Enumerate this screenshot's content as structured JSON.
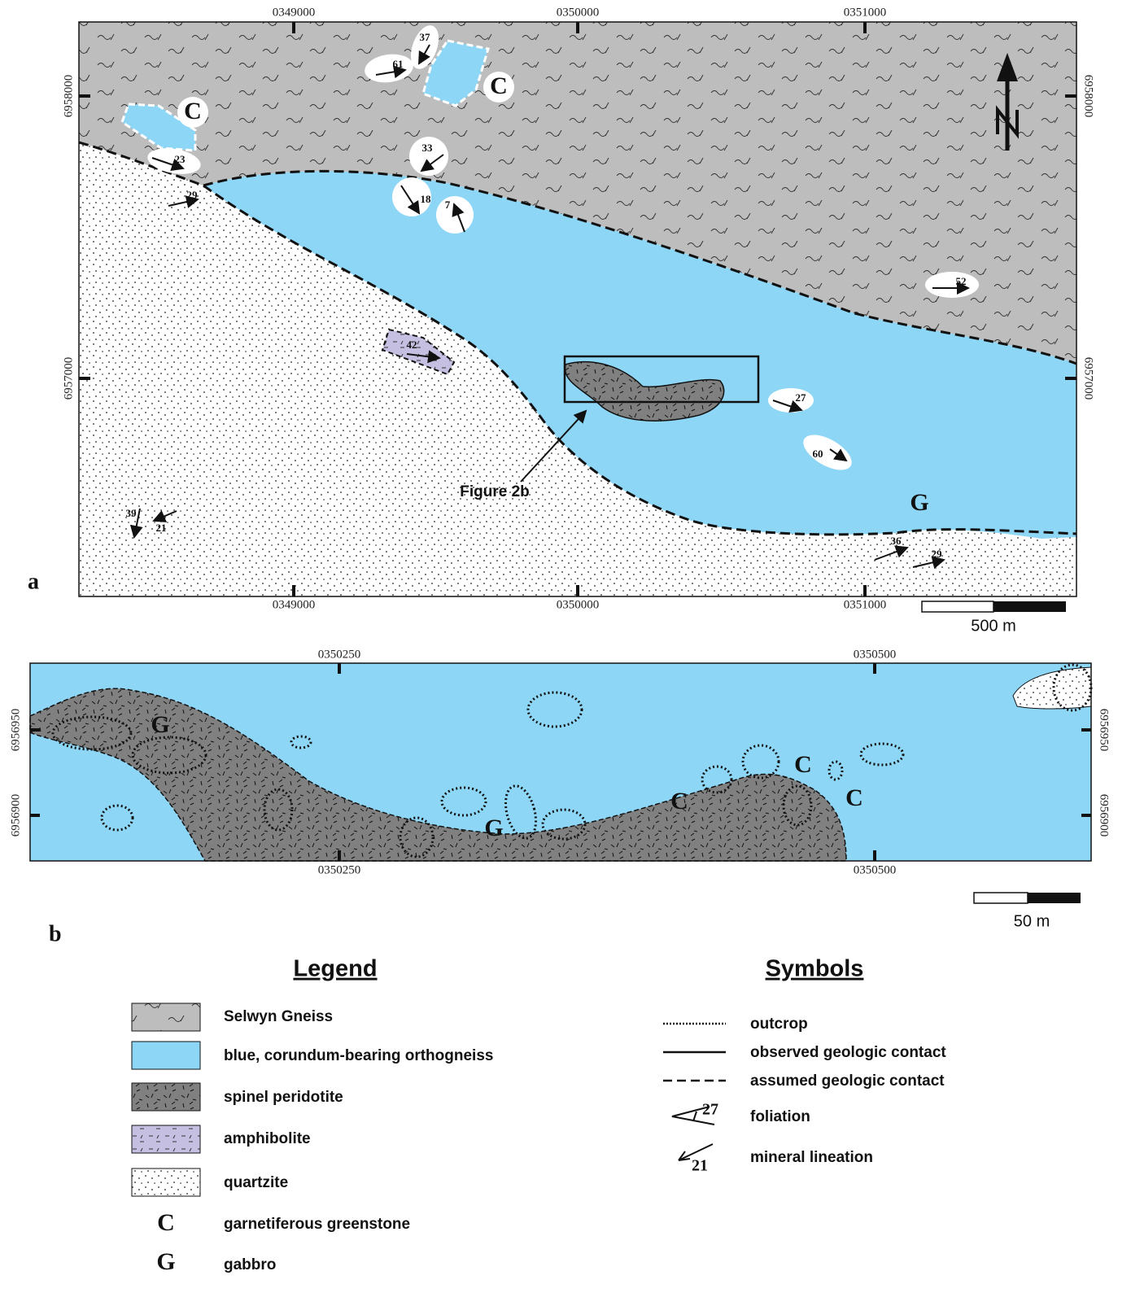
{
  "map_a": {
    "panel_label": "a",
    "easting_labels": [
      "0349000",
      "0350000",
      "0351000"
    ],
    "northing_labels": [
      "6958000",
      "6957000"
    ],
    "rock_labels": [
      "C",
      "C",
      "G"
    ],
    "attitudes": [
      "37",
      "61",
      "23",
      "29",
      "33",
      "18",
      "7",
      "52",
      "42",
      "27",
      "60",
      "39",
      "21",
      "36",
      "29"
    ],
    "callout": "Figure 2b",
    "scale_label": "500 m"
  },
  "map_b": {
    "panel_label": "b",
    "easting_labels": [
      "0350250",
      "0350500"
    ],
    "northing_labels": [
      "6956950",
      "6956900"
    ],
    "rock_labels": [
      "G",
      "G",
      "C",
      "C",
      "C"
    ],
    "scale_label": "50 m"
  },
  "legend": {
    "title": "Legend",
    "units": [
      "Selwyn Gneiss",
      "blue, corundum-bearing orthogneiss",
      "spinel peridotite",
      "amphibolite",
      "quartzite"
    ],
    "letter_units": [
      {
        "symbol": "C",
        "label": "garnetiferous greenstone"
      },
      {
        "symbol": "G",
        "label": "gabbro"
      }
    ]
  },
  "symbols": {
    "title": "Symbols",
    "items": [
      {
        "label": "outcrop"
      },
      {
        "label": "observed geologic contact"
      },
      {
        "label": "assumed geologic contact"
      },
      {
        "label": "foliation",
        "sample": "27"
      },
      {
        "label": "mineral lineation",
        "sample": "21"
      }
    ]
  }
}
